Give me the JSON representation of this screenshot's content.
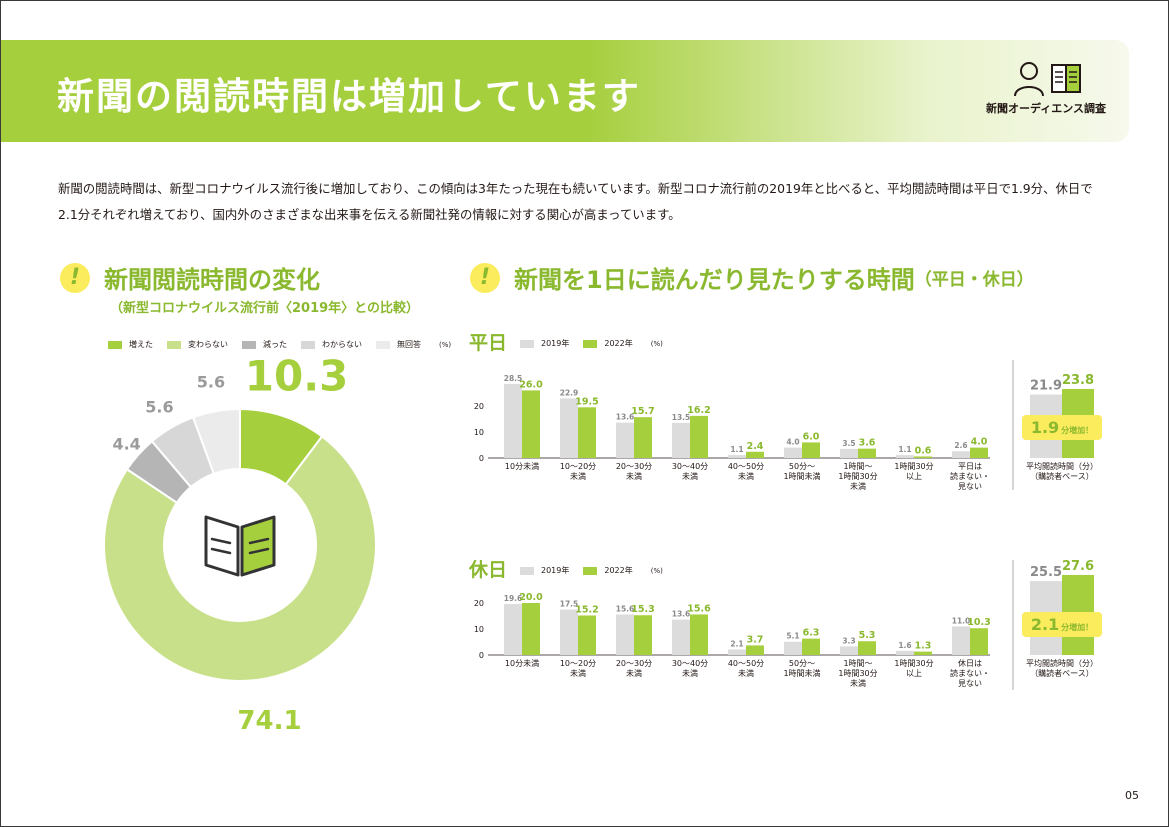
{
  "header": {
    "title": "新聞の閲読時間は増加しています",
    "logo_text": "新聞オーディエンス調査",
    "logo_icon": "reader-with-newspaper-icon"
  },
  "intro": {
    "line1": "新聞の閲読時間は、新型コロナウイルス流行後に増加しており、この傾向は3年たった現在も続いています。新型コロナ流行前の2019年と比べると、平均閲読時間は平日で1.9分、休日で",
    "line2": "2.1分それぞれ増えており、国内外のさまざまな出来事を伝える新聞社発の情報に対する関心が高まっています。"
  },
  "left_section": {
    "title": "新聞閲読時間の変化",
    "subtitle": "（新型コロナウイルス流行前〈2019年〉との比較）"
  },
  "right_section": {
    "title": "新聞を1日に読んだり見たりする時間",
    "title_note": "（平日・休日）"
  },
  "colors": {
    "accent_green": "#a6cf3e",
    "light_green": "#c9e08a",
    "heading_green": "#8ab82e",
    "gray_mid": "#b5b5b5",
    "gray_light": "#d7d7d7",
    "gray_lighter": "#ebebeb",
    "bar_2019": "#dcdcdc",
    "highlight_yellow": "#fbec5d"
  },
  "chart_data": [
    {
      "type": "pie",
      "style": "donut",
      "center_icon": "open-book-icon",
      "legend": [
        "増えた",
        "変わらない",
        "減った",
        "わからない",
        "無回答"
      ],
      "unit": "(%)",
      "values": [
        10.3,
        74.1,
        4.4,
        5.6,
        5.6
      ],
      "colors": [
        "#a6cf3e",
        "#c9e08a",
        "#b5b5b5",
        "#d7d7d7",
        "#ebebeb"
      ]
    },
    {
      "type": "bar",
      "panel": "平日",
      "legend": [
        "2019年",
        "2022年"
      ],
      "unit": "(%)",
      "categories": [
        "10分未満",
        "10～20分\n未満",
        "20～30分\n未満",
        "30～40分\n未満",
        "40～50分\n未満",
        "50分～\n1時間未満",
        "1時間～\n1時間30分\n未満",
        "1時間30分\n以上",
        "平日は\n読まない・\n見ない"
      ],
      "series": [
        {
          "name": "2019年",
          "values": [
            28.5,
            22.9,
            13.6,
            13.5,
            1.1,
            4.0,
            3.5,
            1.1,
            2.6
          ]
        },
        {
          "name": "2022年",
          "values": [
            26.0,
            19.5,
            15.7,
            16.2,
            2.4,
            6.0,
            3.6,
            0.6,
            4.0
          ]
        }
      ],
      "y_ticks": [
        0,
        10,
        20
      ],
      "ylim": [
        0,
        30
      ],
      "average": {
        "label": "平均閲読時間（分）\n（購読者ベース）",
        "v2019": 21.9,
        "v2022": 23.8,
        "increase_value": "1.9",
        "increase_text": "分増加！"
      }
    },
    {
      "type": "bar",
      "panel": "休日",
      "legend": [
        "2019年",
        "2022年"
      ],
      "unit": "(%)",
      "categories": [
        "10分未満",
        "10～20分\n未満",
        "20～30分\n未満",
        "30～40分\n未満",
        "40～50分\n未満",
        "50分～\n1時間未満",
        "1時間～\n1時間30分\n未満",
        "1時間30分\n以上",
        "休日は\n読まない・\n見ない"
      ],
      "series": [
        {
          "name": "2019年",
          "values": [
            19.6,
            17.5,
            15.6,
            13.6,
            2.1,
            5.1,
            3.3,
            1.6,
            11.0
          ]
        },
        {
          "name": "2022年",
          "values": [
            20.0,
            15.2,
            15.3,
            15.6,
            3.7,
            6.3,
            5.3,
            1.3,
            10.3
          ]
        }
      ],
      "y_ticks": [
        0,
        10,
        20
      ],
      "ylim": [
        0,
        30
      ],
      "average": {
        "label": "平均閲読時間（分）\n（購読者ベース）",
        "v2019": 25.5,
        "v2022": 27.6,
        "increase_value": "2.1",
        "increase_text": "分増加！"
      }
    }
  ],
  "page_number": "05"
}
